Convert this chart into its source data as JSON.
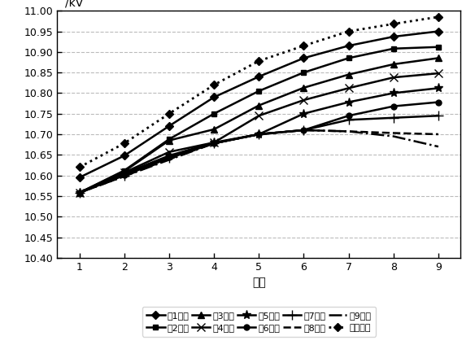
{
  "x": [
    1,
    2,
    3,
    4,
    5,
    6,
    7,
    8,
    9
  ],
  "series_order": [
    "第1节点",
    "第2节点",
    "第3节点",
    "第4节点",
    "第5节点",
    "第6节点",
    "第7节点",
    "第8节点",
    "第9节点",
    "初始情况"
  ],
  "series": {
    "第1节点": {
      "values": [
        10.595,
        10.648,
        10.72,
        10.79,
        10.84,
        10.885,
        10.915,
        10.937,
        10.95
      ],
      "marker": "D",
      "linestyle": "-",
      "linewidth": 1.8
    },
    "第2节点": {
      "values": [
        10.558,
        10.612,
        10.688,
        10.75,
        10.805,
        10.85,
        10.885,
        10.908,
        10.912
      ],
      "marker": "s",
      "linestyle": "-",
      "linewidth": 1.8
    },
    "第3节点": {
      "values": [
        10.558,
        10.61,
        10.685,
        10.712,
        10.77,
        10.813,
        10.845,
        10.87,
        10.885
      ],
      "marker": "^",
      "linestyle": "-",
      "linewidth": 1.8
    },
    "第4节点": {
      "values": [
        10.558,
        10.607,
        10.657,
        10.68,
        10.745,
        10.783,
        10.812,
        10.838,
        10.848
      ],
      "marker": "x",
      "linestyle": "-",
      "linewidth": 1.8
    },
    "第5节点": {
      "values": [
        10.558,
        10.605,
        10.648,
        10.68,
        10.7,
        10.75,
        10.778,
        10.8,
        10.812
      ],
      "marker": "*",
      "linestyle": "-",
      "linewidth": 1.8
    },
    "第6节点": {
      "values": [
        10.558,
        10.602,
        10.645,
        10.678,
        10.7,
        10.71,
        10.745,
        10.768,
        10.778
      ],
      "marker": "o",
      "linestyle": "-",
      "linewidth": 1.8
    },
    "第7节点": {
      "values": [
        10.558,
        10.6,
        10.642,
        10.678,
        10.7,
        10.71,
        10.735,
        10.74,
        10.745
      ],
      "marker": "+",
      "linestyle": "-",
      "linewidth": 1.8
    },
    "第8节点": {
      "values": [
        10.558,
        10.598,
        10.64,
        10.678,
        10.7,
        10.71,
        10.707,
        10.703,
        10.7
      ],
      "marker": "none",
      "linestyle": "--",
      "linewidth": 1.8
    },
    "第9节点": {
      "values": [
        10.558,
        10.598,
        10.638,
        10.678,
        10.7,
        10.71,
        10.707,
        10.695,
        10.67
      ],
      "marker": "none",
      "linestyle": "-.",
      "linewidth": 1.8
    },
    "初始情况": {
      "values": [
        10.62,
        10.678,
        10.75,
        10.82,
        10.878,
        10.915,
        10.95,
        10.968,
        10.985
      ],
      "marker": "D",
      "linestyle": ":",
      "linewidth": 2.0
    }
  },
  "ylim": [
    10.4,
    11.0
  ],
  "yticks": [
    10.4,
    10.45,
    10.5,
    10.55,
    10.6,
    10.65,
    10.7,
    10.75,
    10.8,
    10.85,
    10.9,
    10.95,
    11.0
  ],
  "xlabel": "节点",
  "ylabel": "/kV",
  "color": "#000000",
  "bg_color": "#ffffff",
  "grid_linestyle": "--",
  "grid_color": "#bbbbbb",
  "legend_row1": [
    "第1节点",
    "第2节点",
    "第3节点",
    "第4节点",
    "第5节点"
  ],
  "legend_row2": [
    "第6节点",
    "第7节点",
    "第8节点",
    "第9节点",
    "初始情况"
  ]
}
